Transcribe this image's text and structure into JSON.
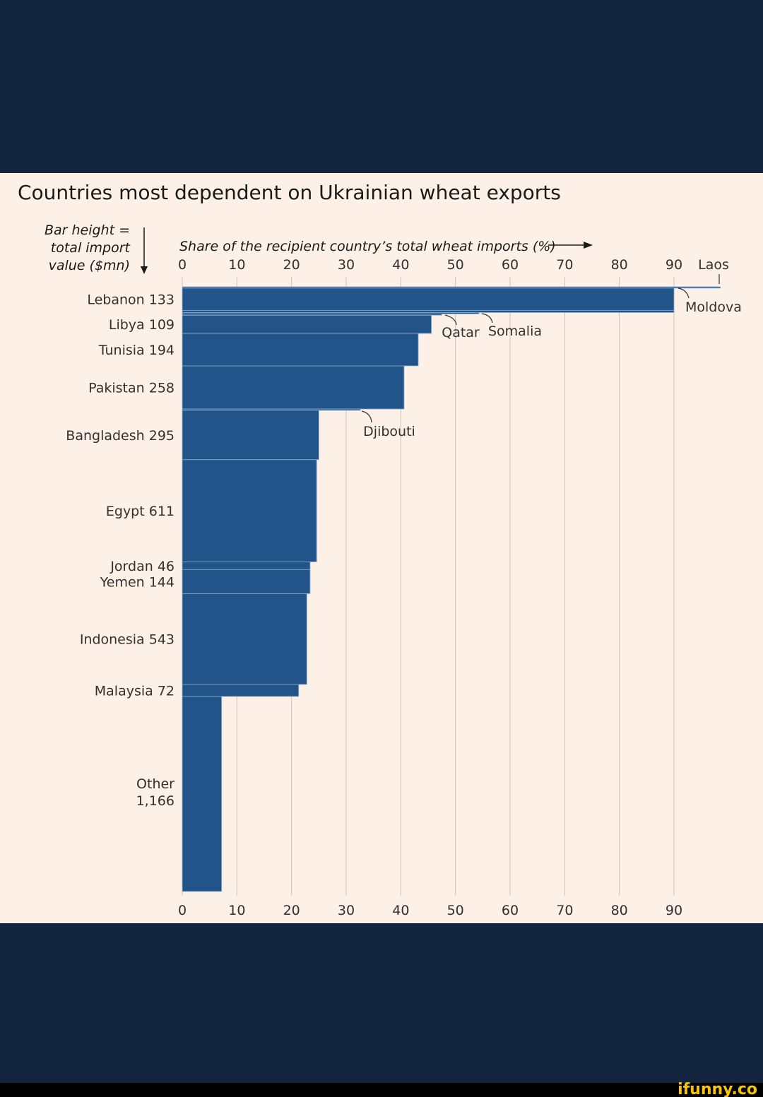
{
  "watermark": "ifunny.co",
  "chart_data": {
    "type": "bar",
    "subtype": "variable-width horizontal bar (bar height = import value)",
    "title": "Countries most dependent on Ukrainian wheat exports",
    "ylabel": "Bar height = total import value ($mn)",
    "ylabel_lines": [
      "Bar height =",
      "total import",
      "value ($mn)"
    ],
    "xlabel": "Share of the recipient country’s total wheat imports (%)",
    "xlim": [
      0,
      90
    ],
    "xticks": [
      "0",
      "10",
      "20",
      "30",
      "40",
      "50",
      "60",
      "70",
      "80",
      "90"
    ],
    "grid": true,
    "bars": [
      {
        "name": "Laos",
        "share": 98.5,
        "import_value": 8,
        "label": "Laos",
        "labeled_left": false
      },
      {
        "name": "Lebanon",
        "share": 90,
        "import_value": 133,
        "label": "Lebanon",
        "value_label": "133",
        "labeled_left": true
      },
      {
        "name": "Moldova",
        "share": 90,
        "import_value": 13,
        "label": "Moldova",
        "labeled_left": false
      },
      {
        "name": "Somalia",
        "share": 54.3,
        "import_value": 8,
        "label": "Somalia",
        "labeled_left": false
      },
      {
        "name": "Qatar",
        "share": 47.5,
        "import_value": 8,
        "label": "Qatar",
        "labeled_left": false
      },
      {
        "name": "Libya",
        "share": 45.6,
        "import_value": 109,
        "label": "Libya",
        "value_label": "109",
        "labeled_left": true
      },
      {
        "name": "Tunisia",
        "share": 43.2,
        "import_value": 194,
        "label": "Tunisia",
        "value_label": "194",
        "labeled_left": true
      },
      {
        "name": "Pakistan",
        "share": 40.6,
        "import_value": 258,
        "label": "Pakistan",
        "value_label": "258",
        "labeled_left": true
      },
      {
        "name": "Djibouti",
        "share": 32.6,
        "import_value": 8,
        "label": "Djibouti",
        "labeled_left": false
      },
      {
        "name": "Bangladesh",
        "share": 25.0,
        "import_value": 295,
        "label": "Bangladesh",
        "value_label": "295",
        "labeled_left": true
      },
      {
        "name": "Egypt",
        "share": 24.6,
        "import_value": 611,
        "label": "Egypt",
        "value_label": "611",
        "labeled_left": true
      },
      {
        "name": "Jordan",
        "share": 23.4,
        "import_value": 46,
        "label": "Jordan",
        "value_label": "46",
        "labeled_left": true
      },
      {
        "name": "Yemen",
        "share": 23.4,
        "import_value": 144,
        "label": "Yemen",
        "value_label": "144",
        "labeled_left": true
      },
      {
        "name": "Indonesia",
        "share": 22.8,
        "import_value": 543,
        "label": "Indonesia",
        "value_label": "543",
        "labeled_left": true
      },
      {
        "name": "Malaysia",
        "share": 21.3,
        "import_value": 72,
        "label": "Malaysia",
        "value_label": "72",
        "labeled_left": true
      },
      {
        "name": "Other",
        "share": 7.2,
        "import_value": 1166,
        "label": "Other",
        "value_label": "1,166",
        "labeled_left": true
      }
    ]
  },
  "colors": {
    "bar": "#225389",
    "panel": "#fdf0e6",
    "frame": "#13253f",
    "text": "#33302e",
    "grid": "#cdc5bd",
    "separator": "#8eb0d3"
  }
}
